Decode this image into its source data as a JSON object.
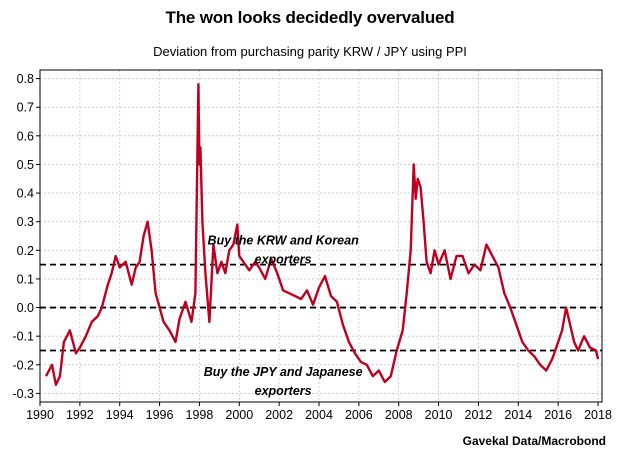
{
  "chart_data": {
    "type": "line",
    "title": "The won looks decidedly overvalued",
    "subtitle": "Deviation from purchasing parity KRW / JPY using PPI",
    "source": "Gavekal Data/Macrobond",
    "xlim": [
      1990,
      2018.2
    ],
    "ylim": [
      -0.33,
      0.83
    ],
    "x_ticks": [
      1990,
      1992,
      1994,
      1996,
      1998,
      2000,
      2002,
      2004,
      2006,
      2008,
      2010,
      2012,
      2014,
      2016,
      2018
    ],
    "y_ticks": [
      -0.3,
      -0.2,
      -0.1,
      0.0,
      0.1,
      0.2,
      0.3,
      0.4,
      0.5,
      0.6,
      0.7,
      0.8
    ],
    "y_tick_labels": [
      "-0.3",
      "-0.2",
      "-0.1",
      "0.0",
      "0.1",
      "0.2",
      "0.3",
      "0.4",
      "0.5",
      "0.6",
      "0.7",
      "0.8"
    ],
    "grid": true,
    "reference_lines": [
      {
        "y": 0.15,
        "style": "dashed",
        "color": "#000000"
      },
      {
        "y": 0.0,
        "style": "dashed",
        "color": "#000000"
      },
      {
        "y": -0.15,
        "style": "dashed",
        "color": "#000000"
      }
    ],
    "annotations": [
      {
        "lines": [
          "Buy the KRW and Korean",
          "exporters"
        ],
        "x": 2002.2,
        "y": 0.22
      },
      {
        "lines": [
          "Buy the JPY and Japanese",
          "exporters"
        ],
        "x": 2002.2,
        "y": -0.24
      }
    ],
    "series": [
      {
        "color": "#c00020",
        "x": [
          1990.3,
          1990.6,
          1990.8,
          1991.0,
          1991.2,
          1991.5,
          1991.8,
          1992.0,
          1992.3,
          1992.6,
          1992.9,
          1993.1,
          1993.4,
          1993.6,
          1993.8,
          1994.0,
          1994.3,
          1994.6,
          1994.8,
          1995.0,
          1995.2,
          1995.4,
          1995.6,
          1995.8,
          1996.0,
          1996.2,
          1996.5,
          1996.8,
          1997.0,
          1997.3,
          1997.6,
          1997.8,
          1997.95,
          1998.0,
          1998.05,
          1998.15,
          1998.3,
          1998.5,
          1998.7,
          1998.9,
          1999.1,
          1999.3,
          1999.5,
          1999.7,
          1999.9,
          2000.0,
          2000.2,
          2000.5,
          2000.8,
          2001.0,
          2001.3,
          2001.6,
          2001.9,
          2002.2,
          2002.5,
          2002.8,
          2003.1,
          2003.4,
          2003.7,
          2004.0,
          2004.3,
          2004.6,
          2004.9,
          2005.2,
          2005.5,
          2005.8,
          2006.1,
          2006.4,
          2006.7,
          2007.0,
          2007.3,
          2007.6,
          2007.9,
          2008.2,
          2008.4,
          2008.6,
          2008.75,
          2008.85,
          2008.95,
          2009.1,
          2009.25,
          2009.4,
          2009.6,
          2009.8,
          2010.0,
          2010.3,
          2010.6,
          2010.9,
          2011.2,
          2011.5,
          2011.8,
          2012.1,
          2012.4,
          2012.7,
          2013.0,
          2013.3,
          2013.6,
          2013.9,
          2014.2,
          2014.5,
          2014.8,
          2015.1,
          2015.4,
          2015.7,
          2016.0,
          2016.2,
          2016.4,
          2016.6,
          2016.8,
          2017.0,
          2017.3,
          2017.6,
          2017.9,
          2018.0
        ],
        "y": [
          -0.24,
          -0.2,
          -0.27,
          -0.24,
          -0.12,
          -0.08,
          -0.16,
          -0.14,
          -0.1,
          -0.05,
          -0.03,
          0.0,
          0.08,
          0.12,
          0.18,
          0.14,
          0.16,
          0.08,
          0.14,
          0.16,
          0.25,
          0.3,
          0.2,
          0.05,
          0.0,
          -0.05,
          -0.08,
          -0.12,
          -0.04,
          0.02,
          -0.05,
          0.05,
          0.78,
          0.5,
          0.56,
          0.3,
          0.12,
          -0.05,
          0.22,
          0.12,
          0.16,
          0.12,
          0.2,
          0.22,
          0.29,
          0.18,
          0.16,
          0.13,
          0.16,
          0.14,
          0.1,
          0.17,
          0.12,
          0.06,
          0.05,
          0.04,
          0.03,
          0.06,
          0.01,
          0.07,
          0.11,
          0.04,
          0.02,
          -0.06,
          -0.12,
          -0.16,
          -0.19,
          -0.2,
          -0.24,
          -0.22,
          -0.26,
          -0.24,
          -0.15,
          -0.08,
          0.05,
          0.2,
          0.5,
          0.38,
          0.45,
          0.42,
          0.3,
          0.16,
          0.12,
          0.2,
          0.15,
          0.2,
          0.1,
          0.18,
          0.18,
          0.12,
          0.15,
          0.13,
          0.22,
          0.18,
          0.14,
          0.05,
          0.0,
          -0.06,
          -0.12,
          -0.15,
          -0.17,
          -0.2,
          -0.22,
          -0.18,
          -0.12,
          -0.08,
          0.0,
          -0.06,
          -0.12,
          -0.15,
          -0.1,
          -0.14,
          -0.15,
          -0.18
        ]
      }
    ]
  }
}
